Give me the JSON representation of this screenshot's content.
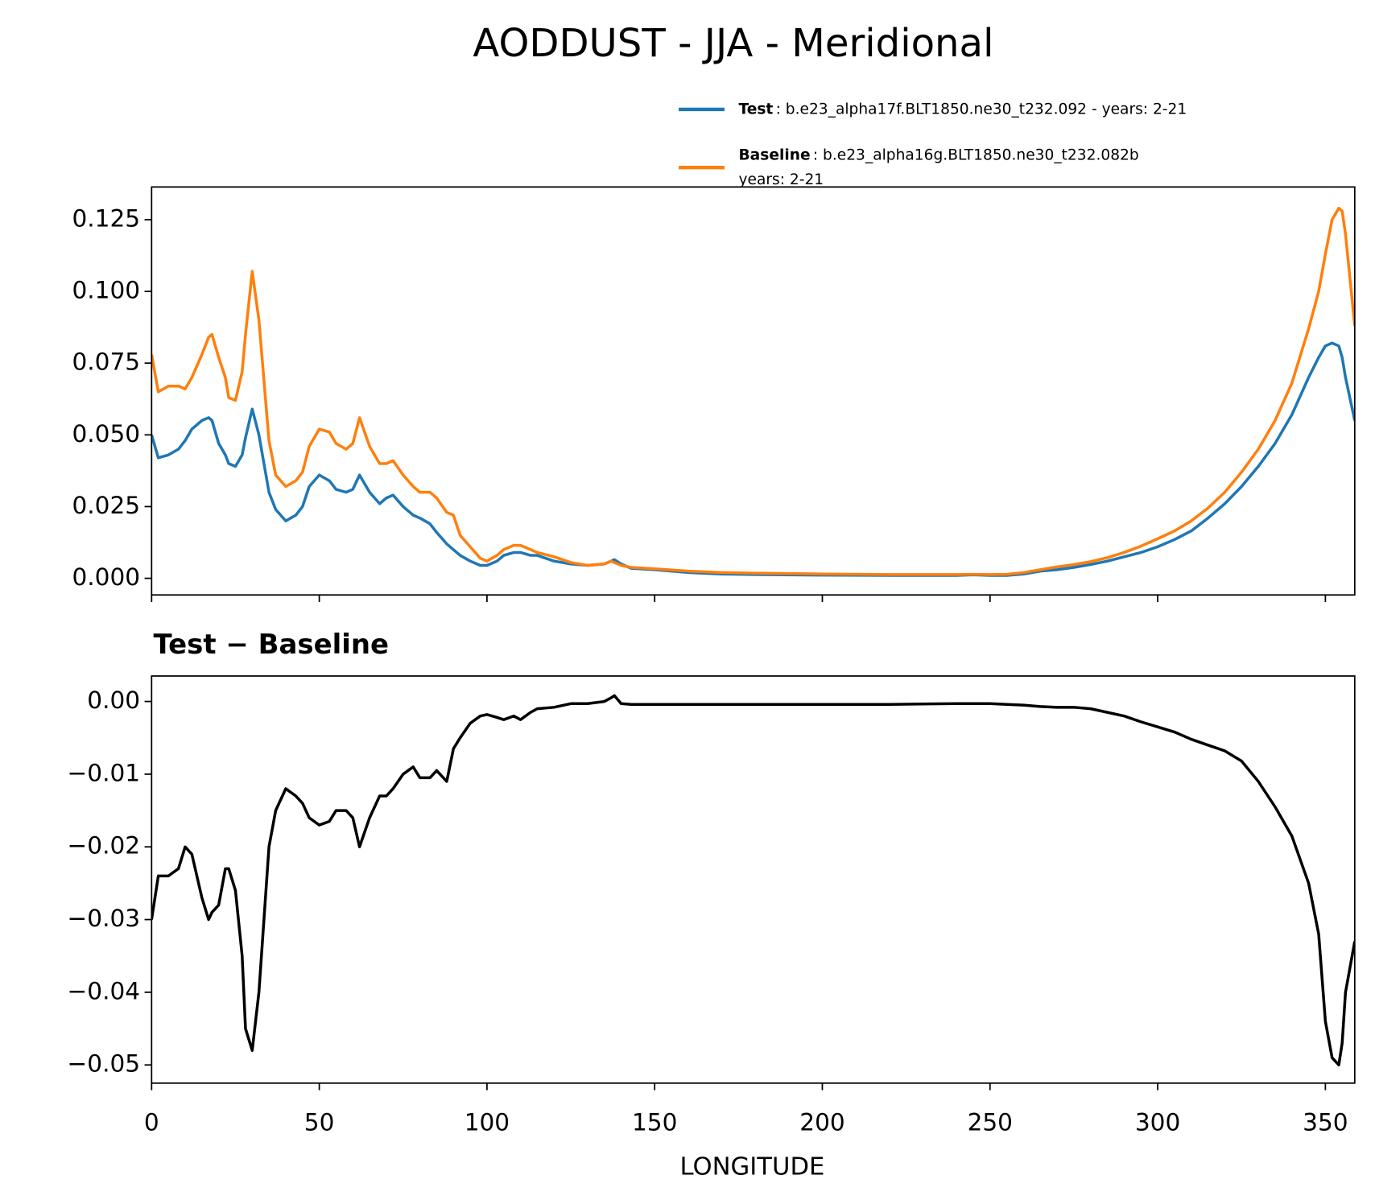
{
  "chart_data": [
    {
      "type": "line",
      "title": "AODDUST - JJA - Meridional",
      "x": [
        0,
        2,
        5,
        8,
        10,
        12,
        15,
        17,
        18,
        20,
        22,
        23,
        25,
        27,
        28,
        30,
        32,
        35,
        37,
        40,
        43,
        45,
        47,
        50,
        53,
        55,
        58,
        60,
        62,
        65,
        68,
        70,
        72,
        75,
        78,
        80,
        83,
        85,
        88,
        90,
        92,
        95,
        98,
        100,
        103,
        105,
        108,
        110,
        113,
        115,
        120,
        125,
        130,
        135,
        137,
        138,
        140,
        143,
        150,
        160,
        170,
        180,
        200,
        220,
        240,
        245,
        250,
        255,
        260,
        265,
        270,
        275,
        280,
        285,
        290,
        295,
        300,
        305,
        310,
        315,
        320,
        325,
        330,
        335,
        340,
        345,
        348,
        350,
        352,
        354,
        355,
        356,
        358.75
      ],
      "series": [
        {
          "name": "Test",
          "detail": [
            ": b.e23_alpha17f.BLT1850.ne30_t232.092 - years: 2-21"
          ],
          "color": "#1f77b4",
          "values": [
            0.05,
            0.042,
            0.043,
            0.045,
            0.048,
            0.052,
            0.055,
            0.056,
            0.055,
            0.047,
            0.043,
            0.04,
            0.039,
            0.043,
            0.049,
            0.059,
            0.05,
            0.03,
            0.024,
            0.02,
            0.022,
            0.025,
            0.032,
            0.036,
            0.034,
            0.031,
            0.03,
            0.031,
            0.036,
            0.03,
            0.026,
            0.028,
            0.029,
            0.025,
            0.022,
            0.021,
            0.019,
            0.016,
            0.012,
            0.01,
            0.008,
            0.006,
            0.0045,
            0.0045,
            0.006,
            0.008,
            0.009,
            0.009,
            0.008,
            0.008,
            0.006,
            0.005,
            0.0045,
            0.005,
            0.006,
            0.0065,
            0.005,
            0.0035,
            0.003,
            0.002,
            0.0015,
            0.0013,
            0.0011,
            0.001,
            0.001,
            0.0012,
            0.001,
            0.001,
            0.0015,
            0.0025,
            0.003,
            0.0038,
            0.0048,
            0.006,
            0.0075,
            0.009,
            0.011,
            0.0135,
            0.0165,
            0.021,
            0.026,
            0.032,
            0.039,
            0.047,
            0.057,
            0.07,
            0.077,
            0.081,
            0.082,
            0.081,
            0.077,
            0.07,
            0.055
          ]
        },
        {
          "name": "Baseline",
          "detail": [
            ": b.e23_alpha16g.BLT1850.ne30_t232.082b",
            "years: 2-21"
          ],
          "color": "#ff7f0e",
          "values": [
            0.078,
            0.065,
            0.067,
            0.067,
            0.066,
            0.07,
            0.078,
            0.084,
            0.085,
            0.077,
            0.07,
            0.063,
            0.062,
            0.072,
            0.085,
            0.107,
            0.09,
            0.048,
            0.036,
            0.032,
            0.034,
            0.037,
            0.046,
            0.052,
            0.051,
            0.047,
            0.045,
            0.047,
            0.056,
            0.046,
            0.04,
            0.04,
            0.041,
            0.036,
            0.032,
            0.03,
            0.03,
            0.028,
            0.023,
            0.022,
            0.015,
            0.011,
            0.007,
            0.006,
            0.008,
            0.01,
            0.0115,
            0.0115,
            0.01,
            0.009,
            0.0075,
            0.0055,
            0.0045,
            0.005,
            0.006,
            0.0055,
            0.0045,
            0.0038,
            0.0033,
            0.0025,
            0.002,
            0.0018,
            0.0015,
            0.0013,
            0.0013,
            0.0014,
            0.0013,
            0.0014,
            0.002,
            0.003,
            0.004,
            0.0048,
            0.0058,
            0.0072,
            0.009,
            0.0112,
            0.0138,
            0.0165,
            0.02,
            0.0245,
            0.03,
            0.037,
            0.045,
            0.055,
            0.068,
            0.087,
            0.1,
            0.113,
            0.125,
            0.129,
            0.128,
            0.12,
            0.088
          ]
        }
      ],
      "xlim": [
        0,
        358.75
      ],
      "ylim": [
        -0.0058,
        0.1364
      ],
      "xticks": [
        0,
        50,
        100,
        150,
        200,
        250,
        300,
        350
      ],
      "yticks": [
        {
          "value": 0,
          "label": "0.000"
        },
        {
          "value": 0.025,
          "label": "0.025"
        },
        {
          "value": 0.05,
          "label": "0.050"
        },
        {
          "value": 0.075,
          "label": "0.075"
        },
        {
          "value": 0.1,
          "label": "0.100"
        },
        {
          "value": 0.125,
          "label": "0.125"
        }
      ]
    },
    {
      "type": "line",
      "title": "Test − Baseline",
      "xlabel": "LONGITUDE",
      "x": [
        0,
        2,
        5,
        8,
        10,
        12,
        15,
        17,
        18,
        20,
        22,
        23,
        25,
        27,
        28,
        30,
        32,
        35,
        37,
        40,
        43,
        45,
        47,
        50,
        53,
        55,
        58,
        60,
        62,
        65,
        68,
        70,
        72,
        75,
        78,
        80,
        83,
        85,
        88,
        90,
        92,
        95,
        98,
        100,
        103,
        105,
        108,
        110,
        113,
        115,
        120,
        125,
        130,
        135,
        137,
        138,
        140,
        143,
        150,
        160,
        170,
        180,
        200,
        220,
        240,
        245,
        250,
        255,
        260,
        265,
        270,
        275,
        280,
        285,
        290,
        295,
        300,
        305,
        310,
        315,
        320,
        325,
        330,
        335,
        340,
        345,
        348,
        350,
        352,
        354,
        355,
        356,
        358.75
      ],
      "series": [
        {
          "color": "#000000",
          "values": [
            -0.03,
            -0.024,
            -0.024,
            -0.023,
            -0.02,
            -0.021,
            -0.027,
            -0.03,
            -0.029,
            -0.028,
            -0.023,
            -0.023,
            -0.026,
            -0.035,
            -0.045,
            -0.048,
            -0.04,
            -0.02,
            -0.015,
            -0.012,
            -0.013,
            -0.014,
            -0.016,
            -0.017,
            -0.0165,
            -0.015,
            -0.015,
            -0.016,
            -0.02,
            -0.016,
            -0.013,
            -0.013,
            -0.012,
            -0.01,
            -0.009,
            -0.0105,
            -0.0105,
            -0.0095,
            -0.011,
            -0.0065,
            -0.005,
            -0.003,
            -0.002,
            -0.0018,
            -0.0022,
            -0.0025,
            -0.002,
            -0.0025,
            -0.0015,
            -0.001,
            -0.0008,
            -0.0003,
            -0.0003,
            0,
            0.0005,
            0.0008,
            -0.0003,
            -0.0004,
            -0.0004,
            -0.0004,
            -0.0004,
            -0.0004,
            -0.0004,
            -0.0004,
            -0.0003,
            -0.0003,
            -0.0003,
            -0.0004,
            -0.0005,
            -0.0007,
            -0.0008,
            -0.0008,
            -0.001,
            -0.0015,
            -0.002,
            -0.0028,
            -0.0035,
            -0.0042,
            -0.0052,
            -0.006,
            -0.0068,
            -0.0082,
            -0.011,
            -0.0145,
            -0.0185,
            -0.025,
            -0.032,
            -0.044,
            -0.049,
            -0.05,
            -0.047,
            -0.04,
            -0.033
          ]
        }
      ],
      "xlim": [
        0,
        358.75
      ],
      "ylim": [
        -0.0525,
        0.0035
      ],
      "xticks": [
        0,
        50,
        100,
        150,
        200,
        250,
        300,
        350
      ],
      "yticks": [
        {
          "value": 0,
          "label": "0.00"
        },
        {
          "value": -0.01,
          "label": "−0.01"
        },
        {
          "value": -0.02,
          "label": "−0.02"
        },
        {
          "value": -0.03,
          "label": "−0.03"
        },
        {
          "value": -0.04,
          "label": "−0.04"
        },
        {
          "value": -0.05,
          "label": "−0.05"
        }
      ]
    }
  ]
}
